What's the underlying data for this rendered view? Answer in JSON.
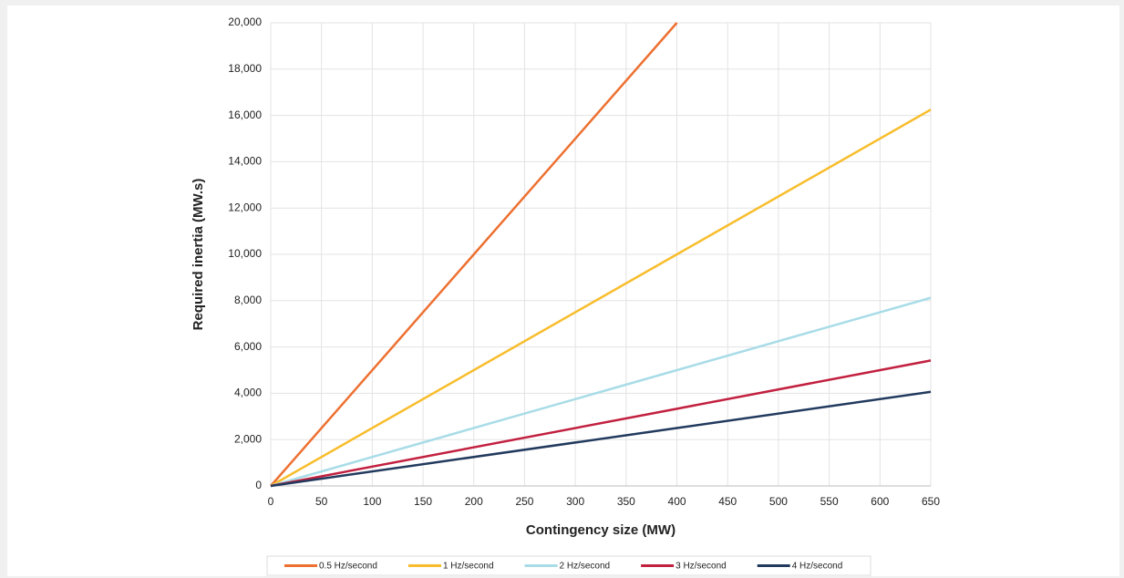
{
  "chart_data": {
    "type": "line",
    "x_label": "Contingency size (MW)",
    "y_label": "Required inertia (MW.s)",
    "x": [
      0,
      400,
      650
    ],
    "series": [
      {
        "name": "0.5 Hz/second",
        "color": "#ed7031",
        "values": [
          0,
          20000,
          null
        ]
      },
      {
        "name": "1 Hz/second",
        "color": "#f8bd2c",
        "values": [
          0,
          10000,
          16250
        ]
      },
      {
        "name": "2 Hz/second",
        "color": "#a8dce7",
        "values": [
          0,
          5000,
          8125
        ]
      },
      {
        "name": "3 Hz/second",
        "color": "#c2203f",
        "values": [
          0,
          3333,
          5417
        ]
      },
      {
        "name": "4 Hz/second",
        "color": "#223a5e",
        "values": [
          0,
          2500,
          4063
        ]
      }
    ],
    "xlim": [
      0,
      650
    ],
    "xticks": [
      0,
      50,
      100,
      150,
      200,
      250,
      300,
      350,
      400,
      450,
      500,
      550,
      600,
      650
    ],
    "ylim": [
      0,
      20000
    ],
    "yticks": [
      0,
      {
        "value": 2000,
        "label": "2,000"
      },
      {
        "value": 4000,
        "label": "4,000"
      },
      {
        "value": 6000,
        "label": "6,000"
      },
      {
        "value": 8000,
        "label": "8,000"
      },
      {
        "value": 10000,
        "label": "10,000"
      },
      {
        "value": 12000,
        "label": "12,000"
      },
      {
        "value": 14000,
        "label": "14,000"
      },
      {
        "value": 16000,
        "label": "16,000"
      },
      {
        "value": 18000,
        "label": "18,000"
      },
      {
        "value": 20000,
        "label": "20,000"
      }
    ],
    "grid": true,
    "legend": "bottom"
  }
}
